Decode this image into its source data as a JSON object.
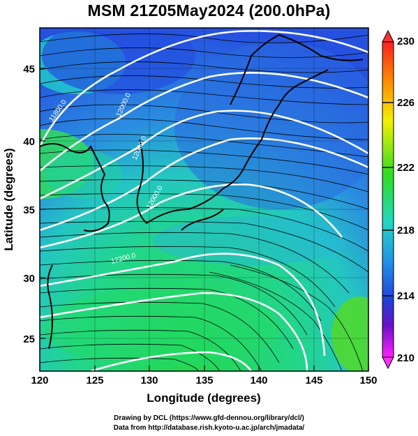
{
  "title": "MSM 21Z05May2024 (200.0hPa)",
  "map": {
    "xlabel": "Longitude (degrees)",
    "ylabel": "Latitude  (degrees)",
    "lon_range": [
      120,
      150
    ],
    "lat_range": [
      22.5,
      48
    ],
    "xticks": [
      "120",
      "125",
      "130",
      "135",
      "140",
      "145",
      "150"
    ],
    "yticks": [
      "25",
      "30",
      "35",
      "40",
      "45"
    ],
    "field": "temperature (K) shaded, geopotential height contours (m), wind streamlines",
    "contours": [
      {
        "label": "11800.0",
        "lon": 122.3,
        "lat": 42.0
      },
      {
        "label": "12000.0",
        "lon": 127.5,
        "lat": 42.7
      },
      {
        "label": "12000.0",
        "lon": 130.0,
        "lat": 39.5
      },
      {
        "label": "12000.0",
        "lon": 130.5,
        "lat": 37.5
      },
      {
        "label": "12200.0",
        "lon": 128.5,
        "lat": 32.0
      }
    ]
  },
  "colorbar": {
    "min": 210,
    "max": 230,
    "ticks": [
      "230",
      "226",
      "222",
      "218",
      "214",
      "210"
    ],
    "colors": [
      "#ff0000",
      "#ff7700",
      "#ffff00",
      "#22dd22",
      "#22cccc",
      "#2222ee",
      "#5500cc",
      "#ff00ff"
    ]
  },
  "credits": {
    "line1": "Drawing by DCL (https://www.gfd-dennou.org/library/dcl/)",
    "line2": "Data from http://database.rish.kyoto-u.ac.jp/arch/jmadata/"
  }
}
